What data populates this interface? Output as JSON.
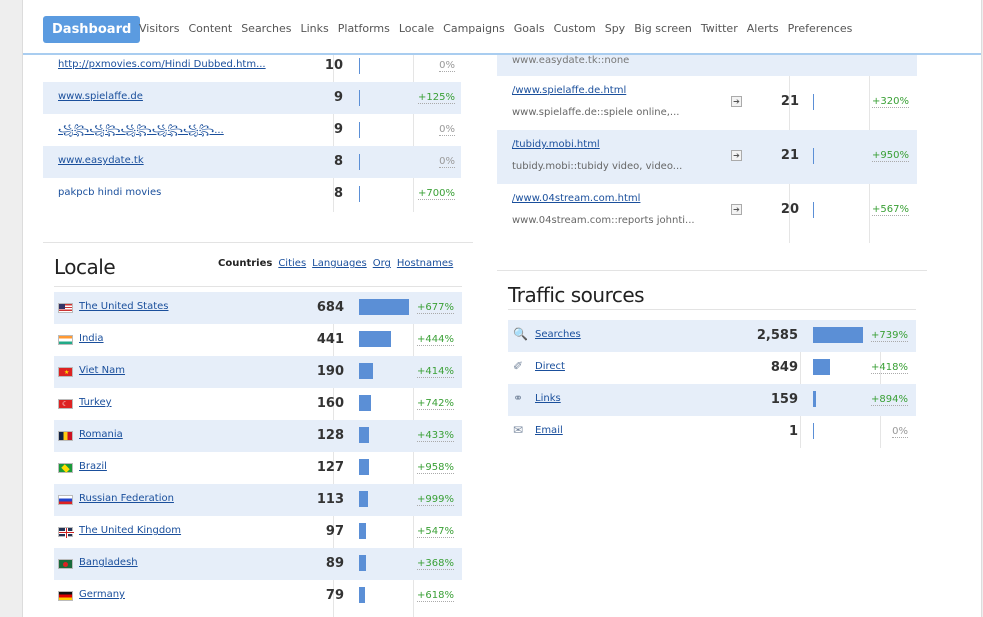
{
  "nav": {
    "active": "Dashboard",
    "items": [
      "Visitors",
      "Content",
      "Searches",
      "Links",
      "Platforms",
      "Locale",
      "Campaigns",
      "Goals",
      "Custom",
      "Spy",
      "Big screen",
      "Twitter",
      "Alerts",
      "Preferences"
    ]
  },
  "links_panel": {
    "rows": [
      {
        "label": "http://pxmovies.com/Hindi Dubbed.htm...",
        "count": "10",
        "change": "0%",
        "kind": "zero",
        "bar": 0
      },
      {
        "label": "www.spielaffe.de",
        "count": "9",
        "change": "+125%",
        "kind": "pos",
        "bar": 0
      },
      {
        "label": "꧁꧂꧁꧂꧁꧂꧁꧂꧁꧂...",
        "count": "9",
        "change": "0%",
        "kind": "zero",
        "bar": 0
      },
      {
        "label": "www.easydate.tk",
        "count": "8",
        "change": "0%",
        "kind": "zero",
        "bar": 0
      },
      {
        "label": "pakpcb hindi movies",
        "count": "8",
        "change": "+700%",
        "kind": "pos",
        "bar": 0
      }
    ]
  },
  "content_panel": {
    "top_fragment": "www.easydate.tk::none",
    "rows": [
      {
        "path": "/www.spielaffe.de.html",
        "desc": "www.spielaffe.de::spiele online,...",
        "count": "21",
        "change": "+320%"
      },
      {
        "path": "/tubidy.mobi.html",
        "desc": "tubidy.mobi::tubidy video, video...",
        "count": "21",
        "change": "+950%"
      },
      {
        "path": "/www.04stream.com.html",
        "desc": "www.04stream.com::reports johnti...",
        "count": "20",
        "change": "+567%"
      }
    ]
  },
  "locale": {
    "title": "Locale",
    "tabs": {
      "active": "Countries",
      "links": [
        "Cities",
        "Languages",
        "Org",
        "Hostnames"
      ]
    },
    "rows": [
      {
        "country": "The United States",
        "flag": "us",
        "count": "684",
        "share": 1.0,
        "change": "+677%"
      },
      {
        "country": "India",
        "flag": "in",
        "count": "441",
        "share": 0.64,
        "change": "+444%"
      },
      {
        "country": "Viet Nam",
        "flag": "vn",
        "count": "190",
        "share": 0.28,
        "change": "+414%"
      },
      {
        "country": "Turkey",
        "flag": "tr",
        "count": "160",
        "share": 0.23,
        "change": "+742%"
      },
      {
        "country": "Romania",
        "flag": "ro",
        "count": "128",
        "share": 0.19,
        "change": "+433%"
      },
      {
        "country": "Brazil",
        "flag": "br",
        "count": "127",
        "share": 0.19,
        "change": "+958%"
      },
      {
        "country": "Russian Federation",
        "flag": "ru",
        "count": "113",
        "share": 0.17,
        "change": "+999%"
      },
      {
        "country": "The United Kingdom",
        "flag": "gb",
        "count": "97",
        "share": 0.14,
        "change": "+547%"
      },
      {
        "country": "Bangladesh",
        "flag": "bd",
        "count": "89",
        "share": 0.13,
        "change": "+368%"
      },
      {
        "country": "Germany",
        "flag": "de",
        "count": "79",
        "share": 0.12,
        "change": "+618%"
      }
    ]
  },
  "traffic": {
    "title": "Traffic sources",
    "rows": [
      {
        "label": "Searches",
        "icon": "magnifier-icon",
        "count": "2,585",
        "share": 1.0,
        "change": "+739%",
        "kind": "pos"
      },
      {
        "label": "Direct",
        "icon": "pencil-icon",
        "count": "849",
        "share": 0.33,
        "change": "+418%",
        "kind": "pos"
      },
      {
        "label": "Links",
        "icon": "chain-link-icon",
        "count": "159",
        "share": 0.06,
        "change": "+894%",
        "kind": "pos"
      },
      {
        "label": "Email",
        "icon": "envelope-icon",
        "count": "1",
        "share": 0.0,
        "change": "0%",
        "kind": "zero"
      }
    ]
  }
}
